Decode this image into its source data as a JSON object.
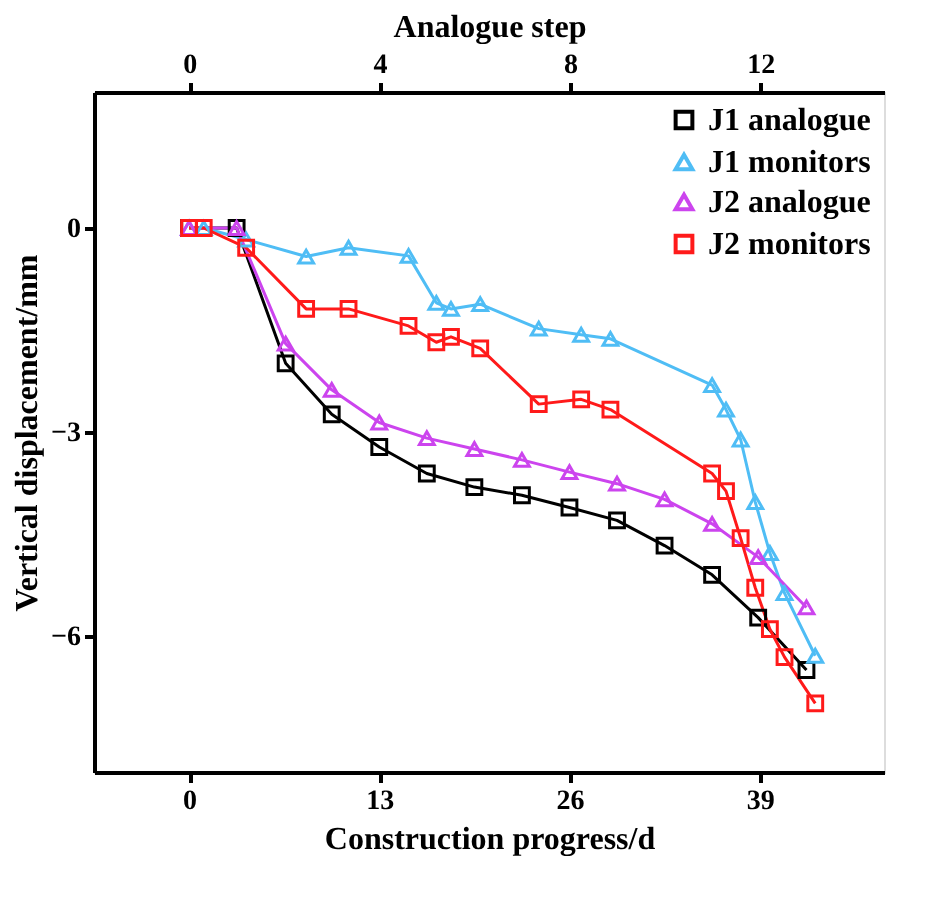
{
  "chart_data": {
    "type": "line",
    "xlabel": "Construction progress/d",
    "ylabel": "Vertical displacement/mm",
    "x2label": "Analogue step",
    "xlim": [
      -6.5,
      47.5
    ],
    "xticks": [
      0,
      13,
      26,
      39
    ],
    "x2lim": [
      -2,
      14.6
    ],
    "x2ticks": [
      0,
      4,
      8,
      12
    ],
    "ylim": [
      -8,
      2
    ],
    "yticks": [
      0,
      -3,
      -6
    ],
    "grid": false,
    "legend": "top right",
    "series": [
      {
        "name": "J1 analogue",
        "color": "#000000",
        "marker": "square",
        "x": [
          0,
          3.25,
          6.6,
          9.75,
          13,
          16.25,
          19.5,
          22.75,
          26,
          29.25,
          32.5,
          35.75,
          38.9,
          42.2
        ],
        "values": [
          0,
          0,
          -1.99,
          -2.74,
          -3.22,
          -3.61,
          -3.81,
          -3.93,
          -4.11,
          -4.3,
          -4.67,
          -5.1,
          -5.73,
          -6.5
        ]
      },
      {
        "name": "J1 monitors",
        "color": "#4fbdf5",
        "marker": "triangle",
        "x": [
          0,
          1.0,
          3.9,
          8.0,
          10.9,
          15.0,
          16.9,
          17.9,
          19.9,
          23.9,
          26.8,
          28.8,
          35.75,
          36.7,
          37.7,
          38.7,
          39.7,
          40.7,
          42.8
        ],
        "values": [
          0,
          0,
          -0.17,
          -0.42,
          -0.29,
          -0.41,
          -1.1,
          -1.19,
          -1.12,
          -1.48,
          -1.57,
          -1.63,
          -2.31,
          -2.67,
          -3.11,
          -4.03,
          -4.78,
          -5.37,
          -6.29
        ]
      },
      {
        "name": "J2 analogue",
        "color": "#cc44ee",
        "marker": "triangle",
        "x": [
          0,
          3.25,
          6.6,
          9.75,
          13,
          16.25,
          19.5,
          22.75,
          26,
          29.25,
          32.5,
          35.75,
          38.9,
          42.2
        ],
        "values": [
          0,
          0,
          -1.7,
          -2.38,
          -2.86,
          -3.09,
          -3.25,
          -3.41,
          -3.59,
          -3.76,
          -3.99,
          -4.35,
          -4.84,
          -5.58
        ]
      },
      {
        "name": "J2 monitors",
        "color": "#ff1a1a",
        "marker": "square",
        "x": [
          0,
          1.0,
          3.9,
          8.0,
          10.9,
          15.0,
          16.9,
          17.9,
          19.9,
          23.9,
          26.8,
          28.8,
          35.75,
          36.7,
          37.7,
          38.7,
          39.7,
          40.7,
          42.8
        ],
        "values": [
          0,
          0,
          -0.29,
          -1.19,
          -1.19,
          -1.44,
          -1.68,
          -1.6,
          -1.77,
          -2.59,
          -2.52,
          -2.67,
          -3.61,
          -3.87,
          -4.56,
          -5.29,
          -5.9,
          -6.31,
          -6.99
        ]
      }
    ]
  }
}
